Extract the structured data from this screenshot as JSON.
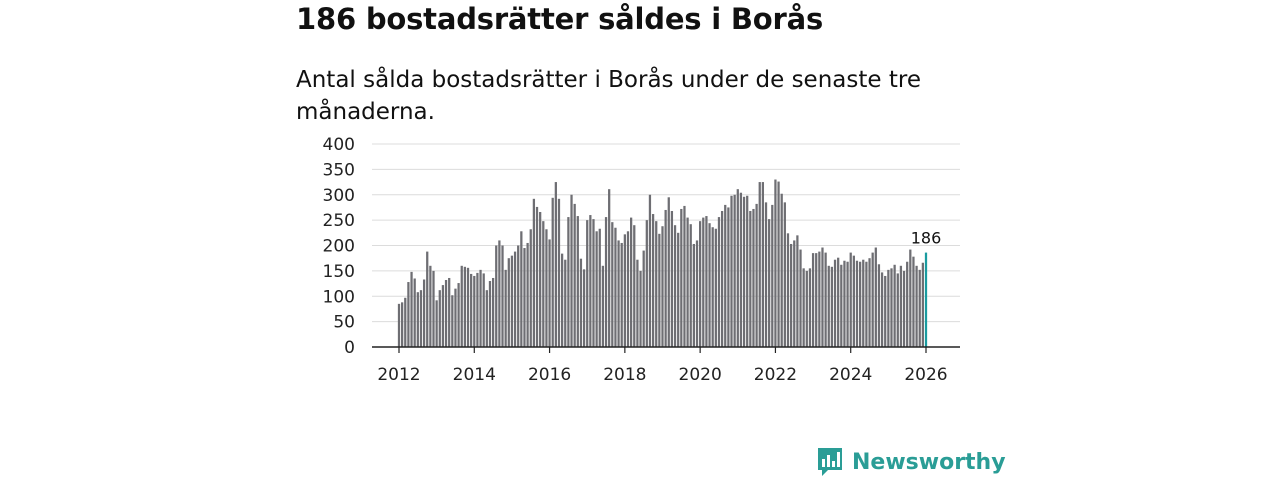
{
  "title": "186 bostadsrätter såldes i Borås",
  "subtitle": "Antal sålda bostadsrätter i Borås under de senaste tre månaderna.",
  "brand": {
    "name": "Newsworthy",
    "icon": "newsworthy-logo-icon",
    "color": "#2a9d96"
  },
  "colors": {
    "bar": "#6e6e73",
    "highlight": "#1a9ba0",
    "grid": "#dcdcdc",
    "axis": "#222222"
  },
  "chart_data": {
    "type": "bar",
    "title": "Antal sålda bostadsrätter i Borås under de senaste tre månaderna.",
    "xlabel": "",
    "ylabel": "",
    "ylim": [
      0,
      400
    ],
    "yticks": [
      0,
      50,
      100,
      150,
      200,
      250,
      300,
      350,
      400
    ],
    "xticks": [
      "2012",
      "2014",
      "2016",
      "2018",
      "2020",
      "2022",
      "2024",
      "2026"
    ],
    "grid": true,
    "start": "2012-01",
    "frequency": "monthly",
    "highlight_label": "186",
    "values": [
      85,
      88,
      97,
      128,
      148,
      135,
      108,
      112,
      133,
      188,
      160,
      150,
      92,
      112,
      122,
      132,
      136,
      102,
      115,
      126,
      160,
      158,
      156,
      144,
      140,
      146,
      152,
      145,
      112,
      130,
      136,
      200,
      210,
      200,
      152,
      175,
      180,
      188,
      200,
      228,
      195,
      205,
      232,
      292,
      276,
      266,
      248,
      232,
      212,
      294,
      325,
      292,
      184,
      172,
      256,
      300,
      282,
      258,
      174,
      153,
      250,
      260,
      252,
      228,
      233,
      160,
      256,
      311,
      246,
      235,
      210,
      205,
      222,
      228,
      255,
      240,
      172,
      150,
      190,
      250,
      300,
      262,
      248,
      223,
      238,
      270,
      295,
      268,
      240,
      225,
      272,
      278,
      255,
      242,
      203,
      210,
      248,
      255,
      258,
      244,
      236,
      233,
      256,
      268,
      280,
      275,
      298,
      300,
      311,
      304,
      296,
      298,
      268,
      272,
      282,
      325,
      325,
      285,
      252,
      280,
      330,
      326,
      302,
      285,
      224,
      203,
      210,
      220,
      192,
      155,
      150,
      155,
      185,
      185,
      188,
      196,
      186,
      160,
      158,
      172,
      176,
      162,
      170,
      168,
      186,
      180,
      170,
      168,
      172,
      168,
      175,
      186,
      196,
      163,
      147,
      140,
      152,
      155,
      162,
      145,
      160,
      150,
      168,
      192,
      178,
      160,
      152,
      166,
      186
    ]
  }
}
